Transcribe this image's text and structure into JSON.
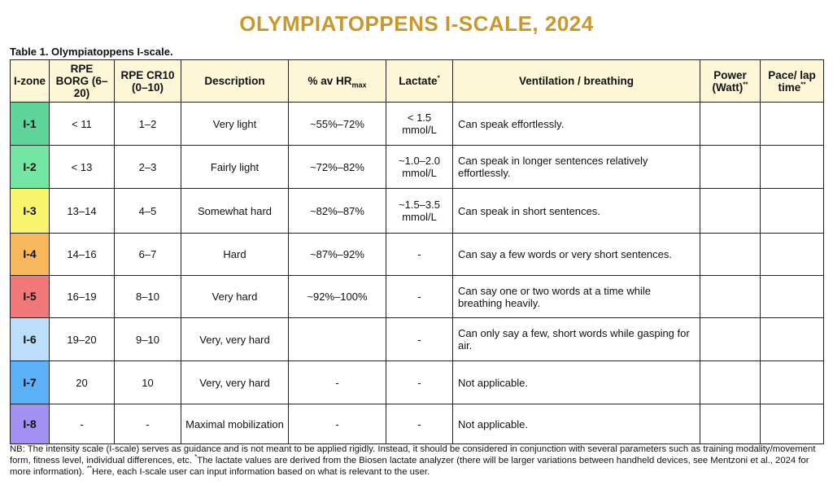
{
  "title": "OLYMPIATOPPENS I-SCALE, 2024",
  "caption": "Table 1. Olympiatoppens I-scale.",
  "table": {
    "headers": [
      {
        "text": "I-zone"
      },
      {
        "text": "RPE BORG (6–20)"
      },
      {
        "text": "RPE CR10 (0–10)"
      },
      {
        "text": "Description"
      },
      {
        "text": "% av HR",
        "sub": "max"
      },
      {
        "text": "Lactate",
        "sup": "*"
      },
      {
        "text": "Ventilation / breathing"
      },
      {
        "text": "Power (Watt)",
        "sup": "**"
      },
      {
        "text": "Pace/ lap time",
        "sup": "**"
      }
    ],
    "rows": [
      {
        "color": "#5dd49a",
        "zone": "I-1",
        "borg": "< 11",
        "cr10": "1–2",
        "description": "Very light",
        "hr": "~55%–72%",
        "lactate": "< 1.5 mmol/L",
        "ventilation": "Can speak effortlessly."
      },
      {
        "color": "#72e6a2",
        "zone": "I-2",
        "borg": "< 13",
        "cr10": "2–3",
        "description": "Fairly light",
        "hr": "~72%–82%",
        "lactate": "~1.0–2.0 mmol/L",
        "ventilation": "Can speak in longer sentences relatively effortlessly."
      },
      {
        "color": "#f8f46c",
        "zone": "I-3",
        "borg": "13–14",
        "cr10": "4–5",
        "description": "Somewhat hard",
        "hr": "~82%–87%",
        "lactate": "~1.5–3.5 mmol/L",
        "ventilation": "Can speak in short sentences."
      },
      {
        "color": "#f9b75c",
        "zone": "I-4",
        "borg": "14–16",
        "cr10": "6–7",
        "description": "Hard",
        "hr": "~87%–92%",
        "lactate": "-",
        "ventilation": "Can say a few words or very short sentences."
      },
      {
        "color": "#f07878",
        "zone": "I-5",
        "borg": "16–19",
        "cr10": "8–10",
        "description": "Very hard",
        "hr": "~92%–100%",
        "lactate": "-",
        "ventilation": "Can say one or two words at a time while breathing heavily."
      },
      {
        "color": "#bcdefa",
        "zone": "I-6",
        "borg": "19–20",
        "cr10": "9–10",
        "description": "Very, very hard",
        "lactate": "-",
        "ventilation": "Can only say a few, short words while gasping for air."
      },
      {
        "color": "#5cb0f6",
        "zone": "I-7",
        "borg": "20",
        "cr10": "10",
        "description": "Very, very hard",
        "hr": "-",
        "lactate": "-",
        "ventilation": "Not applicable."
      },
      {
        "color": "#a291f2",
        "zone": "I-8",
        "borg": "-",
        "cr10": "-",
        "description": "Maximal mobilization",
        "hr": "-",
        "lactate": "-",
        "ventilation": "Not applicable."
      }
    ]
  },
  "footnote": [
    {
      "text": "NB: The intensity scale (I-scale) serves as guidance and is not meant to be applied rigidly. Instead, it should be considered in conjunction with several parameters such as training modality/movement form, fitness level, individual differences, etc. "
    },
    {
      "sup": "*"
    },
    {
      "text": "The lactate values are derived from the Biosen lactate analyzer (there will be larger variations between handheld devices, see Mentzoni et al., 2024 for more information). "
    },
    {
      "sup": "**"
    },
    {
      "text": "Here, each I-scale user can input information based on what is relevant to the user."
    }
  ]
}
